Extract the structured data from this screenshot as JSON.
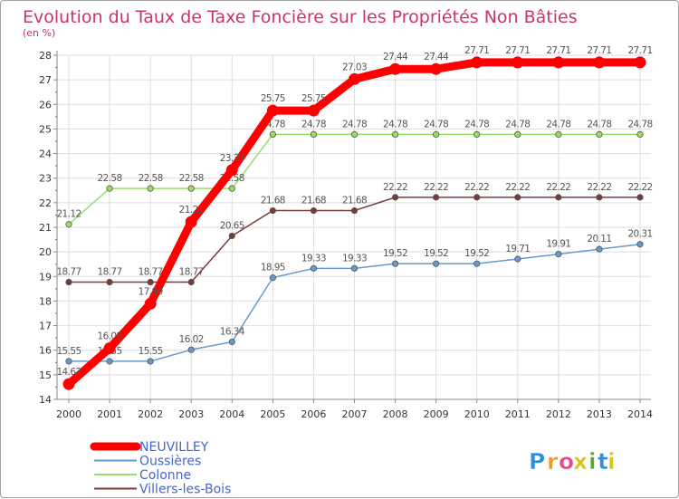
{
  "chart_data": {
    "type": "line",
    "title": "Evolution du Taux de Taxe Foncière sur les Propriétés Non Bâties",
    "ylabel": "(en %)",
    "xlabel": "",
    "x": [
      "2000",
      "2001",
      "2002",
      "2003",
      "2004",
      "2005",
      "2006",
      "2007",
      "2008",
      "2009",
      "2010",
      "2011",
      "2012",
      "2013",
      "2014"
    ],
    "ylim": [
      14,
      28
    ],
    "yticks": [
      "14",
      "15",
      "16",
      "17",
      "18",
      "19",
      "20",
      "21",
      "22",
      "23",
      "24",
      "25",
      "26",
      "27",
      "28"
    ],
    "grid": true,
    "legend_position": "bottom-left",
    "series": [
      {
        "name": "NEUVILLEY",
        "color": "#ff0000",
        "values": [
          14.62,
          16.08,
          17.89,
          21.22,
          23.33,
          25.75,
          25.75,
          27.03,
          27.44,
          27.44,
          27.71,
          27.71,
          27.71,
          27.71,
          27.71
        ],
        "labels": [
          "14.62",
          "16.08",
          "17.89",
          "21.22",
          "23.33",
          "25.75",
          "25.75",
          "27.03",
          "27.44",
          "27.44",
          "27.71",
          "27.71",
          "27.71",
          "27.71",
          "27.71"
        ]
      },
      {
        "name": "Oussières",
        "color": "#6699cc",
        "values": [
          15.55,
          15.55,
          15.55,
          16.02,
          16.34,
          18.95,
          19.33,
          19.33,
          19.52,
          19.52,
          19.52,
          19.71,
          19.91,
          20.11,
          20.31
        ],
        "labels": [
          "15.55",
          "15.55",
          "15.55",
          "16.02",
          "16.34",
          "18.95",
          "19.33",
          "19.33",
          "19.52",
          "19.52",
          "19.52",
          "19.71",
          "19.91",
          "20.11",
          "20.31"
        ]
      },
      {
        "name": "Colonne",
        "color": "#99dd66",
        "values": [
          21.12,
          22.58,
          22.58,
          22.58,
          22.58,
          24.78,
          24.78,
          24.78,
          24.78,
          24.78,
          24.78,
          24.78,
          24.78,
          24.78,
          24.78
        ],
        "labels": [
          "21.12",
          "22.58",
          "22.58",
          "22.58",
          "22.58",
          "24.78",
          "24.78",
          "24.78",
          "24.78",
          "24.78",
          "24.78",
          "24.78",
          "24.78",
          "24.78",
          "24.78"
        ]
      },
      {
        "name": "Villers-les-Bois",
        "color": "#7a3a3a",
        "values": [
          18.77,
          18.77,
          18.77,
          18.77,
          20.65,
          21.68,
          21.68,
          21.68,
          22.22,
          22.22,
          22.22,
          22.22,
          22.22,
          22.22,
          22.22
        ],
        "labels": [
          "18.77",
          "18.77",
          "18.77",
          "18.77",
          "20.65",
          "21.68",
          "21.68",
          "21.68",
          "22.22",
          "22.22",
          "22.22",
          "22.22",
          "22.22",
          "22.22",
          "22.22"
        ]
      }
    ]
  },
  "brand": {
    "text": "Proxiti",
    "letters": [
      "P",
      "r",
      "o",
      "x",
      "i",
      "t",
      "i"
    ],
    "colors": [
      "#2f8fd8",
      "#f39a1e",
      "#e84d8a",
      "#e1c218",
      "#5aa832",
      "#2f8fd8",
      "#e1c218"
    ]
  },
  "colors": {
    "title": "#cc3366",
    "axis": "#888888",
    "grid": "#dddddd",
    "tick_label": "#333333",
    "point_label": "#555555",
    "legend_text": "#4466cc"
  }
}
